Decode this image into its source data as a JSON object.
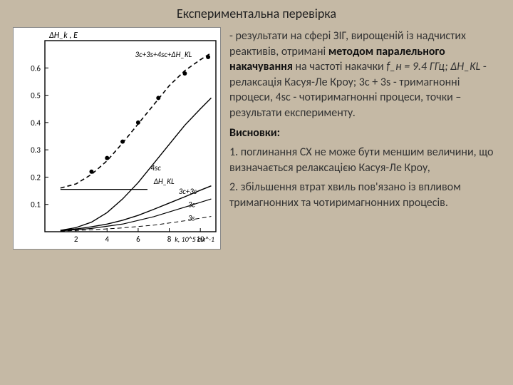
{
  "title": "Експериментальна перевірка",
  "chart": {
    "background_color": "#ffffff",
    "axis_color": "#000000",
    "y_label": "ΔH_k , E",
    "y_ticks": [
      0.1,
      0.2,
      0.3,
      0.4,
      0.5,
      0.6
    ],
    "y_tick_labels": [
      "0.1",
      "0.2",
      "0.3",
      "0.4",
      "0.5",
      "0.6"
    ],
    "x_ticks": [
      2,
      4,
      6,
      8,
      10
    ],
    "x_tick_labels": [
      "2",
      "4",
      "6",
      "8",
      "10"
    ],
    "x_unit_label": "k, 10^5 см^-1",
    "xlim": [
      0,
      11
    ],
    "ylim": [
      0,
      0.7
    ],
    "curves": {
      "top_dashed": {
        "label": "3c+3s+4sc+ΔH_KL",
        "style": "dashed",
        "width": 1.6,
        "pts": [
          [
            1,
            0.16
          ],
          [
            2,
            0.175
          ],
          [
            3,
            0.21
          ],
          [
            4,
            0.26
          ],
          [
            5,
            0.325
          ],
          [
            6,
            0.395
          ],
          [
            7,
            0.465
          ],
          [
            8,
            0.535
          ],
          [
            9,
            0.59
          ],
          [
            10,
            0.63
          ],
          [
            10.7,
            0.655
          ]
        ]
      },
      "points": {
        "label": "експеримент",
        "style": "dots",
        "size": 3,
        "pts": [
          [
            3,
            0.22
          ],
          [
            4,
            0.27
          ],
          [
            5,
            0.33
          ],
          [
            6,
            0.4
          ],
          [
            7.3,
            0.49
          ],
          [
            9,
            0.58
          ],
          [
            10.5,
            0.64
          ]
        ]
      },
      "four_sc": {
        "label": "4sc",
        "style": "solid",
        "width": 1.4,
        "pts": [
          [
            1,
            0.005
          ],
          [
            2,
            0.015
          ],
          [
            3,
            0.035
          ],
          [
            4,
            0.07
          ],
          [
            5,
            0.12
          ],
          [
            6,
            0.18
          ],
          [
            7,
            0.25
          ],
          [
            8,
            0.32
          ],
          [
            9,
            0.39
          ],
          [
            10,
            0.45
          ],
          [
            10.7,
            0.49
          ]
        ]
      },
      "dh_flat": {
        "label": "ΔH_KL",
        "style": "solid",
        "width": 1.2,
        "pts": [
          [
            1,
            0.155
          ],
          [
            6.6,
            0.155
          ]
        ]
      },
      "three_c_three_s": {
        "label": "3c+3s",
        "style": "solid",
        "width": 1.4,
        "pts": [
          [
            1,
            0.005
          ],
          [
            2,
            0.01
          ],
          [
            3,
            0.018
          ],
          [
            4,
            0.028
          ],
          [
            5,
            0.042
          ],
          [
            6,
            0.06
          ],
          [
            7,
            0.082
          ],
          [
            8,
            0.105
          ],
          [
            9,
            0.128
          ],
          [
            10,
            0.152
          ],
          [
            10.7,
            0.168
          ]
        ]
      },
      "three_c": {
        "label": "3c",
        "style": "solid",
        "width": 1.2,
        "pts": [
          [
            1,
            0.003
          ],
          [
            3,
            0.012
          ],
          [
            5,
            0.028
          ],
          [
            7,
            0.055
          ],
          [
            9,
            0.09
          ],
          [
            10.7,
            0.12
          ]
        ]
      },
      "three_s": {
        "label": "3s",
        "style": "dashed",
        "width": 1.0,
        "pts": [
          [
            1,
            0.002
          ],
          [
            3,
            0.007
          ],
          [
            5,
            0.014
          ],
          [
            7,
            0.024
          ],
          [
            9,
            0.04
          ],
          [
            10.7,
            0.056
          ]
        ]
      }
    },
    "curve_label_positions": {
      "top_dashed": [
        5.8,
        0.64
      ],
      "four_sc": [
        6.8,
        0.225
      ],
      "dh_flat": [
        7.0,
        0.175
      ],
      "three_c_three_s": [
        8.6,
        0.138
      ],
      "three_c": [
        9.2,
        0.09
      ],
      "three_s": [
        9.2,
        0.04
      ]
    },
    "font_size_ticks": 11,
    "font_size_labels": 12
  },
  "body": {
    "para1_prefix": "- результати на сфері ЗІГ, вирощеній із надчистих реактивів, отримані ",
    "para1_bold": "методом паралельного накачування",
    "para1_mid1": " на частоті накачки ",
    "freq": "f_н = 9.4 ГГц; ",
    "dh": "ΔH_KL",
    "para1_mid2": " - релаксація Касуя-Ле Кроу; 3c + 3s - тримагнонні процеси, 4sc - чотиримагнонні процеси, точки – результати експерименту.",
    "concl_head": "Висновки:",
    "concl1": "1. поглинання СХ не може бути меншим величини, що визначається релаксацією Касуя-Ле Кроу,",
    "concl2": "2. збільшення втрат хвиль пов'язано із впливом тримагнонних та чотиримагнонних процесів."
  }
}
